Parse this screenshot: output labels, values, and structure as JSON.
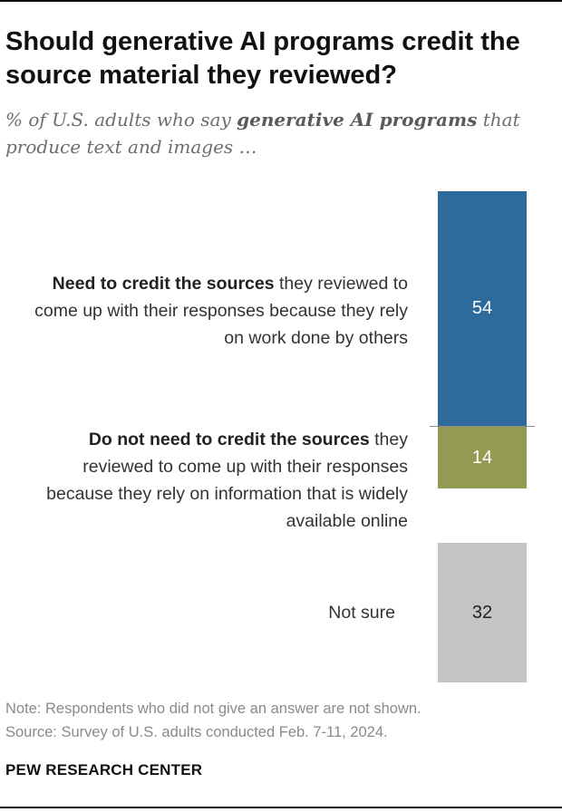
{
  "title": "Should generative AI programs credit the source material they reviewed?",
  "subtitle": {
    "prefix": "% of U.S. adults who say ",
    "emphasis": "generative AI programs",
    "suffix": " that produce text and images …"
  },
  "chart_data": {
    "type": "bar",
    "orientation": "vertical-stacked",
    "categories": [
      "Need to credit the sources they reviewed to come up with their responses because they rely on work done by others",
      "Do not need to credit the sources they reviewed to come up with their responses because they rely on information that is widely available online",
      "Not sure"
    ],
    "values": [
      54,
      14,
      32
    ],
    "colors": [
      "#2c6b9b",
      "#929b51",
      "#c4c4c4"
    ],
    "label_colors": [
      "#ffffff",
      "#ffffff",
      "#222222"
    ],
    "labels": [
      {
        "bold": "Need to credit the sources",
        "rest": " they reviewed to come up with their responses because they rely on work done by others"
      },
      {
        "bold": "Do not need to credit the sources",
        "rest": " they reviewed to come up with their responses because they rely on information that is widely available online"
      },
      {
        "bold": "",
        "rest": "Not sure"
      }
    ],
    "unit": "%"
  },
  "note": "Note: Respondents who did not give an answer are not shown.",
  "source": "Source: Survey of U.S. adults conducted Feb. 7-11, 2024.",
  "brand": "PEW RESEARCH CENTER"
}
